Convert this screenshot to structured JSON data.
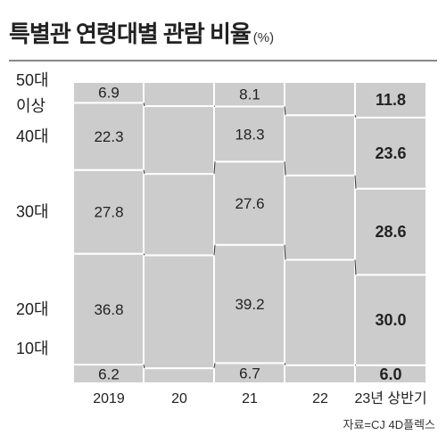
{
  "header": {
    "title": "특별관 연령대별 관람 비율",
    "unit": "(%)"
  },
  "source": "자료=CJ 4D플렉스",
  "chart_data": {
    "type": "bar",
    "stacked": true,
    "normalized_percent": true,
    "categories": [
      "2019",
      "20",
      "21",
      "22",
      "23년 상반기"
    ],
    "series_order_bottom_to_top": [
      "10대",
      "20대",
      "30대",
      "40대",
      "50대 이상"
    ],
    "series": [
      {
        "name": "10대",
        "values": [
          6.2,
          null,
          6.7,
          null,
          6.0
        ],
        "estimated": [
          null,
          5.0,
          null,
          6.0,
          null
        ]
      },
      {
        "name": "20대",
        "values": [
          36.8,
          null,
          39.2,
          null,
          30.0
        ],
        "estimated": [
          null,
          37.5,
          null,
          35.0,
          null
        ]
      },
      {
        "name": "30대",
        "values": [
          27.8,
          null,
          27.6,
          null,
          28.6
        ],
        "estimated": [
          null,
          27.0,
          null,
          28.0,
          null
        ]
      },
      {
        "name": "40대",
        "values": [
          22.3,
          null,
          18.3,
          null,
          23.6
        ],
        "estimated": [
          null,
          22.5,
          null,
          20.0,
          null
        ]
      },
      {
        "name": "50대 이상",
        "values": [
          6.9,
          null,
          8.1,
          null,
          11.8
        ],
        "estimated": [
          null,
          8.0,
          null,
          11.0,
          null
        ]
      }
    ],
    "category_labels": [
      "10대",
      "20대",
      "30대",
      "40대",
      "50대 이상"
    ],
    "highlight_category": "23년 상반기",
    "ylim": [
      0,
      100
    ],
    "grid": false,
    "colors": {
      "bar": "#cccccc",
      "divider": "#ffffff",
      "connector": "#333333",
      "text": "#222222"
    }
  }
}
